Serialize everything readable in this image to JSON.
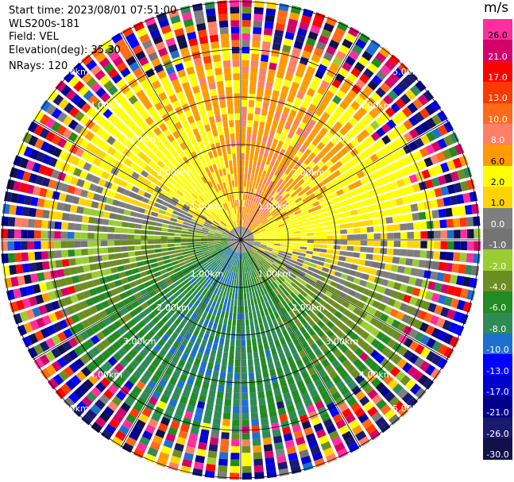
{
  "header": {
    "start_time": "Start time: 2023/08/01 07:51:00",
    "instrument": "WLS200s-181",
    "field": "Field: VEL",
    "elevation": "Elevation(deg): 35.30",
    "nrays": "NRays: 120"
  },
  "colorbar": {
    "unit": "m/s",
    "ticks": [
      "26.0",
      "21.0",
      "17.0",
      "13.0",
      "10.0",
      "8.0",
      "6.0",
      "2.0",
      "1.0",
      "0.0",
      "-1.0",
      "-2.0",
      "-4.0",
      "-6.0",
      "-8.0",
      "-10.0",
      "-13.0",
      "-17.0",
      "-21.0",
      "-26.0",
      "-30.0"
    ],
    "colors": [
      "#ff2ea0",
      "#d4006a",
      "#ff0000",
      "#ff3800",
      "#ff6a18",
      "#ff7f66",
      "#ff9a00",
      "#ffff00",
      "#ffd400",
      "#7f7f7f",
      "#747474",
      "#9acd32",
      "#6b8e23",
      "#228b22",
      "#2e8b57",
      "#1e6fd0",
      "#0000ff",
      "#0000cd",
      "#00008b",
      "#191970",
      "#10104a"
    ]
  },
  "chart_data": {
    "type": "heatmap",
    "projection": "polar PPI",
    "field": "VEL",
    "units": "m/s",
    "value_range": [
      -30,
      30
    ],
    "n_rays": 120,
    "range_rings": [
      "1.00km",
      "2.00km",
      "3.00km",
      "4.00km",
      "5.00km"
    ],
    "velocity_pattern": [
      {
        "sector": "north",
        "velocity": "positive (2 to 8 m/s)"
      },
      {
        "sector": "east",
        "velocity": "positive (1 to 6 m/s)"
      },
      {
        "sector": "south",
        "velocity": "negative (-1 to -8 m/s)"
      },
      {
        "sector": "west",
        "velocity": "negative (-2 to -6 m/s)"
      },
      {
        "sector": "outer ring beyond ~4.5km",
        "velocity": "noise, full range"
      }
    ]
  }
}
